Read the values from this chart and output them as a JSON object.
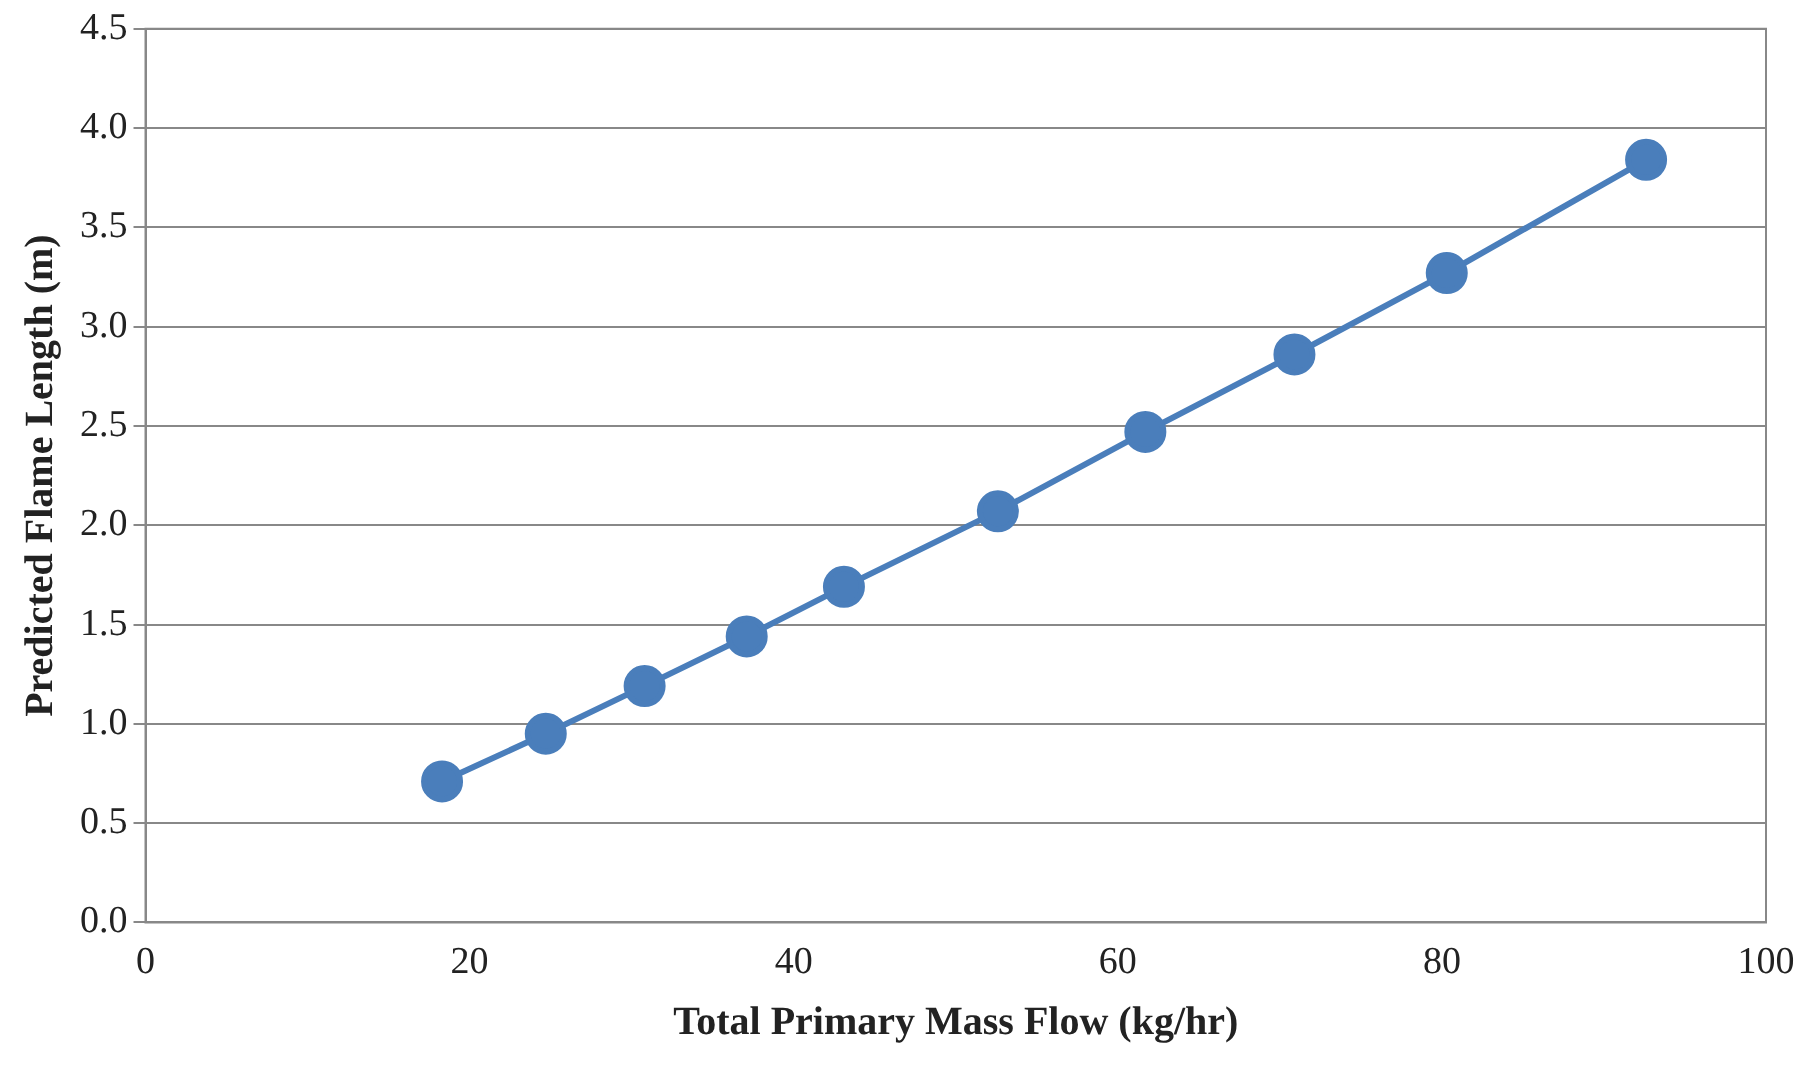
{
  "chart_data": {
    "type": "line",
    "xlabel": "Total Primary Mass Flow (kg/hr)",
    "ylabel": "Predicted Flame Length (m)",
    "x": [
      18.3,
      24.7,
      30.8,
      37.1,
      43.1,
      52.6,
      61.7,
      70.9,
      80.3,
      92.6
    ],
    "series": [
      {
        "color": "#4a7ebb",
        "values": [
          0.71,
          0.95,
          1.19,
          1.44,
          1.69,
          2.07,
          2.47,
          2.86,
          3.27,
          3.84
        ]
      }
    ],
    "xlim": [
      0,
      100
    ],
    "xticks": [
      0,
      20,
      40,
      60,
      80,
      100
    ],
    "ylim": [
      0,
      4.5
    ],
    "yticks": [
      {
        "value": 0,
        "label": "0.0"
      },
      {
        "value": 0.5,
        "label": "0.5"
      },
      {
        "value": 1,
        "label": "1.0"
      },
      {
        "value": 1.5,
        "label": "1.5"
      },
      {
        "value": 2,
        "label": "2.0"
      },
      {
        "value": 2.5,
        "label": "2.5"
      },
      {
        "value": 3,
        "label": "3.0"
      },
      {
        "value": 3.5,
        "label": "3.5"
      },
      {
        "value": 4,
        "label": "4.0"
      },
      {
        "value": 4.5,
        "label": "4.5"
      }
    ],
    "grid": "y",
    "marker": "circle",
    "line_style": "solid",
    "legend": false
  }
}
